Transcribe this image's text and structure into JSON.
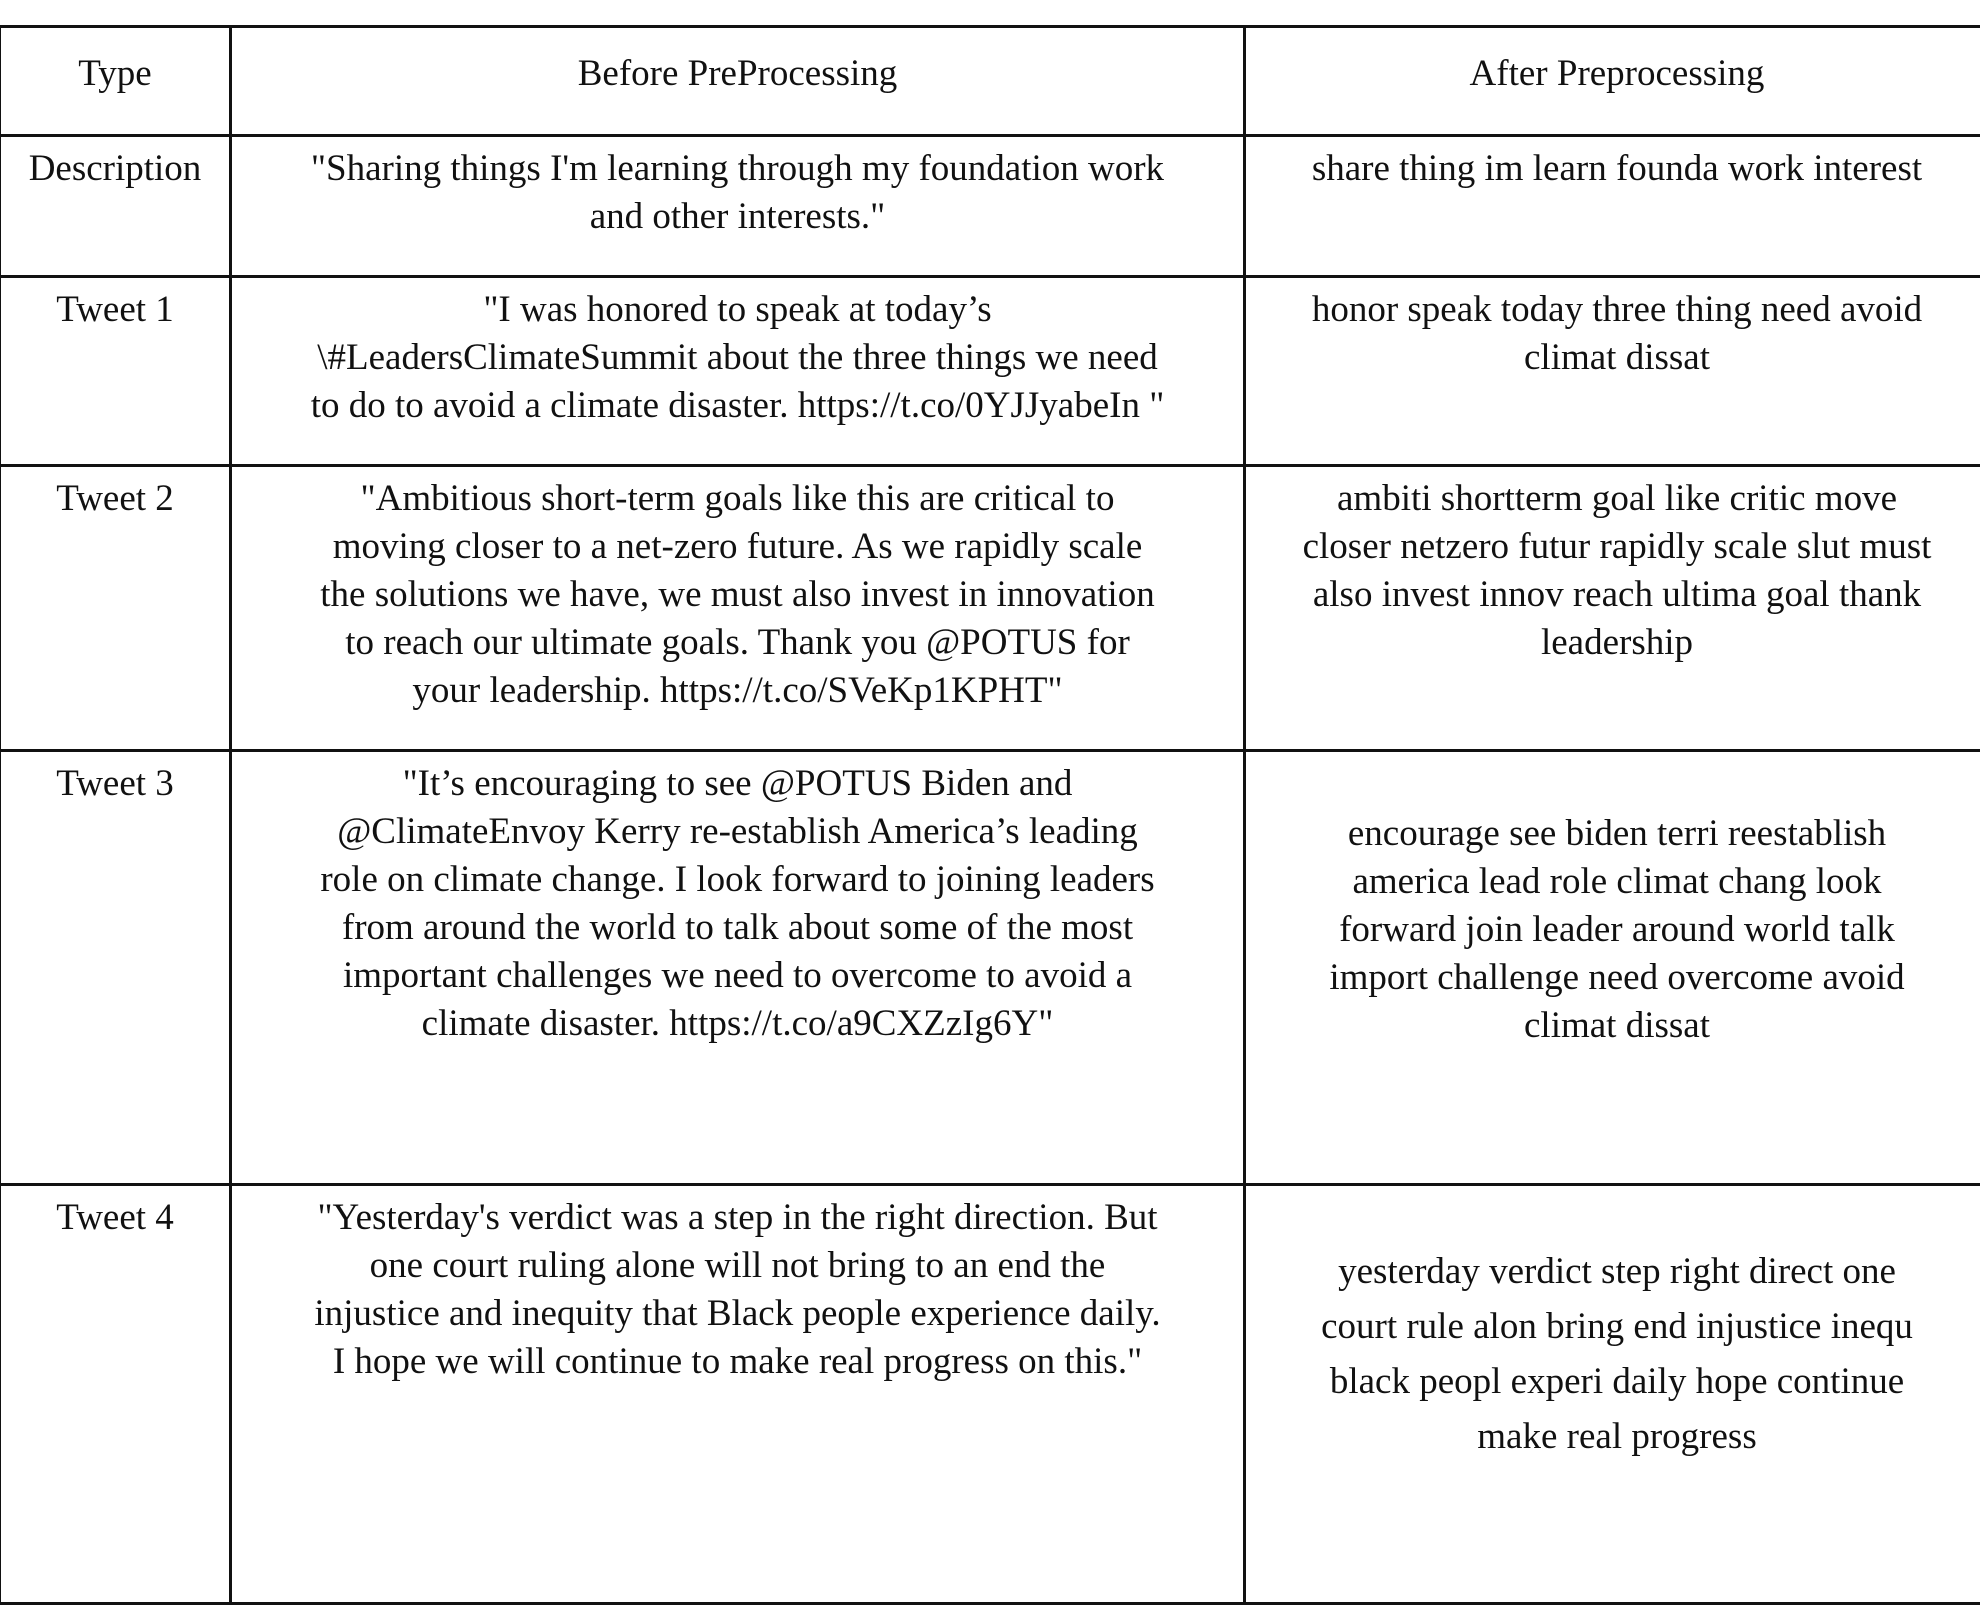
{
  "header": [
    "Type",
    "Before PreProcessing",
    "After Preprocessing"
  ],
  "rows": [
    {
      "type": "Description",
      "before": [
        "\"Sharing things I'm learning through my foundation work",
        "and other interests.\""
      ],
      "after": [
        "share thing im learn founda work interest"
      ]
    },
    {
      "type": "Tweet 1",
      "before": [
        "\"I was honored to speak at today’s",
        "\\#LeadersClimateSummit about the three things we need",
        "to do to avoid a climate disaster. https://t.co/0YJJyabeIn \""
      ],
      "after": [
        "honor speak today three thing need avoid",
        "climat dissat"
      ]
    },
    {
      "type": "Tweet 2",
      "before": [
        "\"Ambitious short-term goals like this are critical to",
        "moving closer to a net-zero future. As we rapidly scale",
        "the solutions we have, we must also invest in innovation",
        "to reach our ultimate goals. Thank you @POTUS for",
        "your leadership. https://t.co/SVeKp1KPHT\""
      ],
      "after": [
        "ambiti shortterm goal like critic move",
        "closer netzero futur rapidly scale slut must",
        "also invest innov reach ultima goal thank",
        "leadership"
      ]
    },
    {
      "type": "Tweet 3",
      "before": [
        "\"It’s encouraging to see @POTUS Biden and",
        "@ClimateEnvoy Kerry re-establish America’s leading",
        "role on climate change. I look forward to joining leaders",
        "from around the world to talk about some of the most",
        "important challenges we need to overcome to avoid a",
        "climate disaster. https://t.co/a9CXZzIg6Y\""
      ],
      "after": [
        "encourage see biden terri reestablish",
        "america lead role climat chang look",
        "forward join leader around world talk",
        "import challenge need overcome avoid",
        "climat dissat"
      ]
    },
    {
      "type": "Tweet 4",
      "before": [
        "\"Yesterday's verdict was a step in the right direction. But",
        "one court ruling alone will not bring to an end the",
        "injustice and inequity that Black people experience daily.",
        "I hope we will continue to make real progress on this.\""
      ],
      "after": [
        "yesterday verdict step right direct one",
        "court rule alon bring end injustice inequ",
        "black peopl experi daily hope continue",
        "make real progress"
      ]
    }
  ]
}
